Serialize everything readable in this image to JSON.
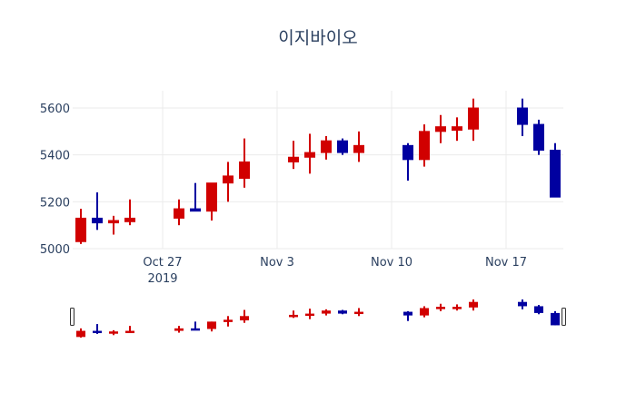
{
  "chart_data": {
    "type": "candlestick",
    "title": "이지바이오",
    "xlabel": "",
    "ylabel": "",
    "ylim": [
      5000,
      5680
    ],
    "yticks": [
      5000,
      5200,
      5400,
      5600
    ],
    "ytick_labels": [
      "5000",
      "5200",
      "5400",
      "5600"
    ],
    "xticks": [
      {
        "date": "2019-10-27",
        "label": "Oct 27",
        "sublabel": "2019"
      },
      {
        "date": "2019-11-03",
        "label": "Nov 3",
        "sublabel": ""
      },
      {
        "date": "2019-11-10",
        "label": "Nov 10",
        "sublabel": ""
      },
      {
        "date": "2019-11-17",
        "label": "Nov 17",
        "sublabel": ""
      }
    ],
    "grid": true,
    "rangeslider": true,
    "increasing_color": "#d10000",
    "decreasing_color": "#0000a0",
    "series": [
      {
        "date": "2019-10-22",
        "open": 5030,
        "high": 5170,
        "low": 5020,
        "close": 5130
      },
      {
        "date": "2019-10-23",
        "open": 5130,
        "high": 5240,
        "low": 5080,
        "close": 5110
      },
      {
        "date": "2019-10-24",
        "open": 5110,
        "high": 5140,
        "low": 5060,
        "close": 5120
      },
      {
        "date": "2019-10-25",
        "open": 5115,
        "high": 5210,
        "low": 5100,
        "close": 5130
      },
      {
        "date": "2019-10-28",
        "open": 5130,
        "high": 5210,
        "low": 5100,
        "close": 5170
      },
      {
        "date": "2019-10-29",
        "open": 5170,
        "high": 5280,
        "low": 5160,
        "close": 5160
      },
      {
        "date": "2019-10-30",
        "open": 5160,
        "high": 5280,
        "low": 5120,
        "close": 5280
      },
      {
        "date": "2019-10-31",
        "open": 5280,
        "high": 5370,
        "low": 5200,
        "close": 5310
      },
      {
        "date": "2019-11-01",
        "open": 5300,
        "high": 5470,
        "low": 5260,
        "close": 5370
      },
      {
        "date": "2019-11-04",
        "open": 5370,
        "high": 5460,
        "low": 5340,
        "close": 5390
      },
      {
        "date": "2019-11-05",
        "open": 5390,
        "high": 5490,
        "low": 5320,
        "close": 5410
      },
      {
        "date": "2019-11-06",
        "open": 5410,
        "high": 5480,
        "low": 5380,
        "close": 5460
      },
      {
        "date": "2019-11-07",
        "open": 5460,
        "high": 5470,
        "low": 5400,
        "close": 5410
      },
      {
        "date": "2019-11-08",
        "open": 5410,
        "high": 5500,
        "low": 5370,
        "close": 5440
      },
      {
        "date": "2019-11-11",
        "open": 5440,
        "high": 5450,
        "low": 5290,
        "close": 5380
      },
      {
        "date": "2019-11-12",
        "open": 5380,
        "high": 5530,
        "low": 5350,
        "close": 5500
      },
      {
        "date": "2019-11-13",
        "open": 5500,
        "high": 5570,
        "low": 5450,
        "close": 5520
      },
      {
        "date": "2019-11-14",
        "open": 5505,
        "high": 5560,
        "low": 5460,
        "close": 5520
      },
      {
        "date": "2019-11-15",
        "open": 5510,
        "high": 5640,
        "low": 5460,
        "close": 5600
      },
      {
        "date": "2019-11-18",
        "open": 5600,
        "high": 5640,
        "low": 5480,
        "close": 5530
      },
      {
        "date": "2019-11-19",
        "open": 5530,
        "high": 5550,
        "low": 5400,
        "close": 5420
      },
      {
        "date": "2019-11-20",
        "open": 5420,
        "high": 5450,
        "low": 5220,
        "close": 5220
      }
    ]
  }
}
